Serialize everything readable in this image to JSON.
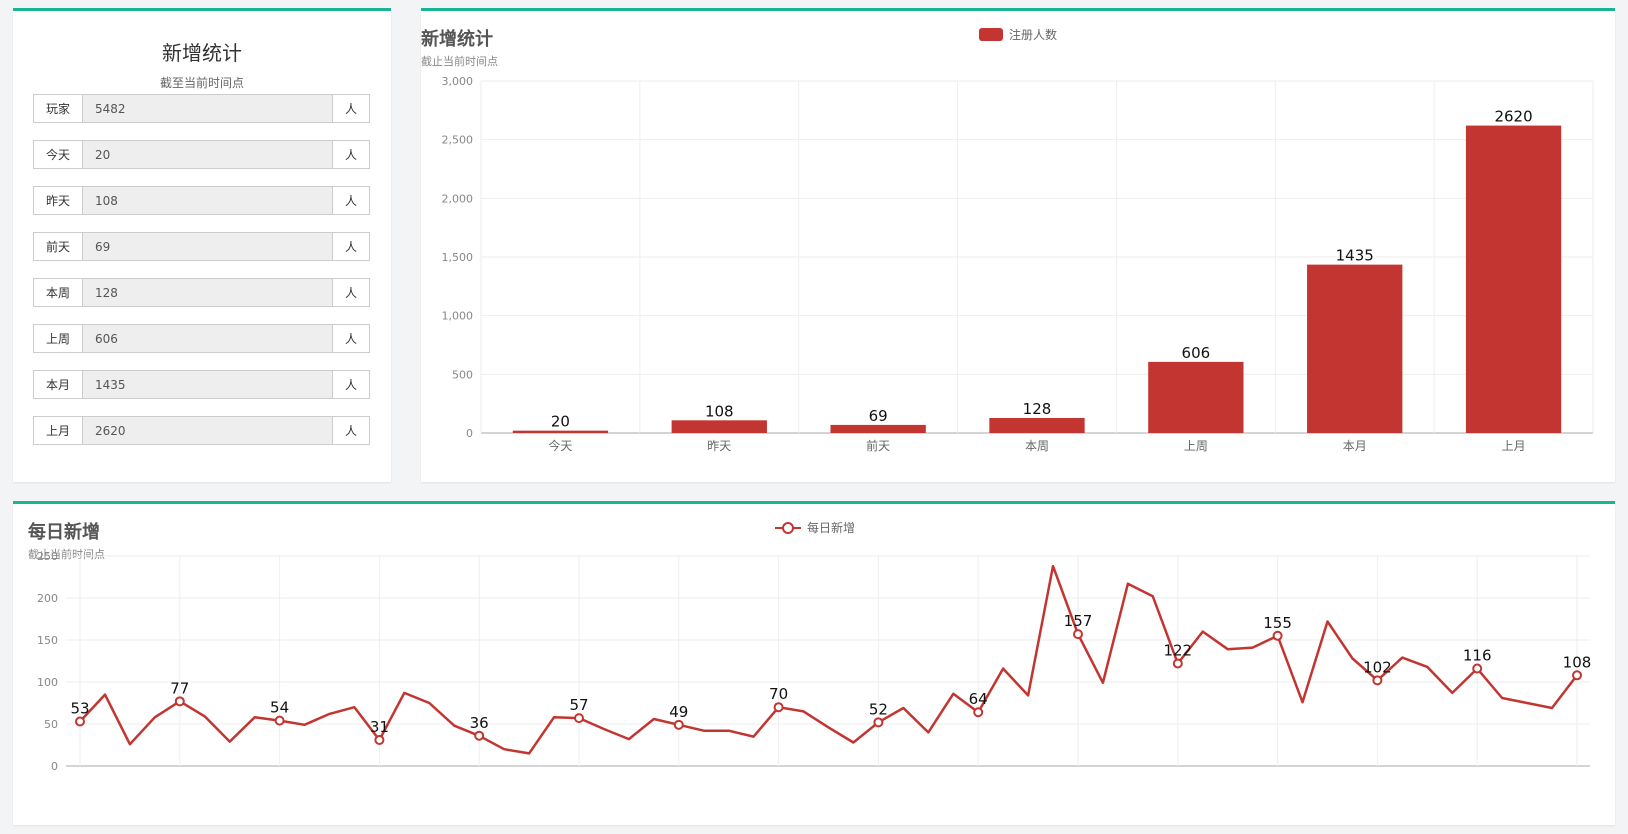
{
  "stats_panel": {
    "title": "新增统计",
    "subtitle": "截至当前时间点",
    "rows": [
      {
        "label": "玩家",
        "value": "5482",
        "unit": "人"
      },
      {
        "label": "今天",
        "value": "20",
        "unit": "人"
      },
      {
        "label": "昨天",
        "value": "108",
        "unit": "人"
      },
      {
        "label": "前天",
        "value": "69",
        "unit": "人"
      },
      {
        "label": "本周",
        "value": "128",
        "unit": "人"
      },
      {
        "label": "上周",
        "value": "606",
        "unit": "人"
      },
      {
        "label": "本月",
        "value": "1435",
        "unit": "人"
      },
      {
        "label": "上月",
        "value": "2620",
        "unit": "人"
      }
    ]
  },
  "chart_data": [
    {
      "type": "bar",
      "title": "新增统计",
      "subtitle": "截止当前时间点",
      "categories": [
        "今天",
        "昨天",
        "前天",
        "本周",
        "上周",
        "本月",
        "上月"
      ],
      "series": [
        {
          "name": "注册人数",
          "values": [
            20,
            108,
            69,
            128,
            606,
            1435,
            2620
          ]
        }
      ],
      "ylim": [
        0,
        3000
      ],
      "yticks": [
        0,
        500,
        1000,
        1500,
        2000,
        2500,
        3000
      ],
      "ytick_labels": [
        "0",
        "500",
        "1,000",
        "1,500",
        "2,000",
        "2,500",
        "3,000"
      ],
      "data_labels": true,
      "legend": "top-center",
      "grid": true,
      "color": "#c23531"
    },
    {
      "type": "line",
      "title": "每日新增",
      "subtitle": "截止当前时间点",
      "series": [
        {
          "name": "每日新增",
          "values": [
            53,
            85,
            26,
            58,
            77,
            59,
            29,
            58,
            54,
            49,
            62,
            70,
            31,
            87,
            75,
            48,
            36,
            20,
            15,
            58,
            57,
            44,
            32,
            56,
            49,
            42,
            42,
            35,
            70,
            65,
            46,
            28,
            52,
            69,
            40,
            86,
            64,
            116,
            84,
            238,
            157,
            99,
            217,
            202,
            122,
            160,
            139,
            141,
            155,
            76,
            172,
            128,
            102,
            129,
            118,
            87,
            116,
            81,
            75,
            69,
            108
          ]
        }
      ],
      "labeled_points": [
        0,
        4,
        8,
        12,
        16,
        20,
        24,
        28,
        32,
        36,
        40,
        44,
        48,
        52,
        56,
        60
      ],
      "ylim": [
        0,
        250
      ],
      "yticks": [
        0,
        50,
        100,
        150,
        200,
        250
      ],
      "legend": "top-center",
      "grid": true,
      "color": "#c23531"
    }
  ]
}
